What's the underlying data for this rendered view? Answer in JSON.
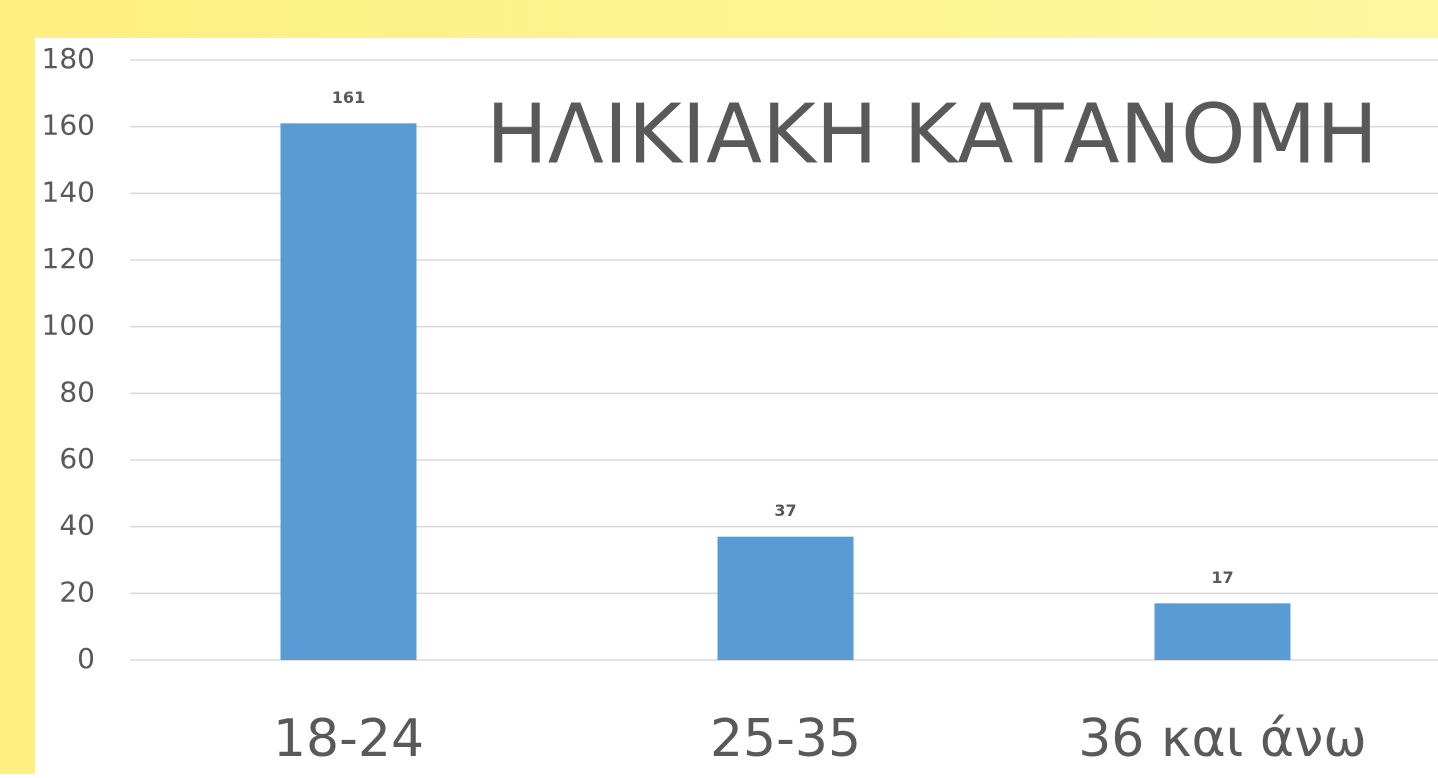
{
  "chart_data": {
    "type": "bar",
    "title": "ΗΛΙΚΙΑΚΗ ΚΑΤΑΝΟΜΗ",
    "categories": [
      "18-24",
      "25-35",
      "36 και άνω"
    ],
    "values": [
      161,
      37,
      17
    ],
    "color": "#5b9bd5",
    "ylim": [
      0,
      180
    ],
    "yticks": [
      0,
      20,
      40,
      60,
      80,
      100,
      120,
      140,
      160,
      180
    ],
    "grid": true
  }
}
